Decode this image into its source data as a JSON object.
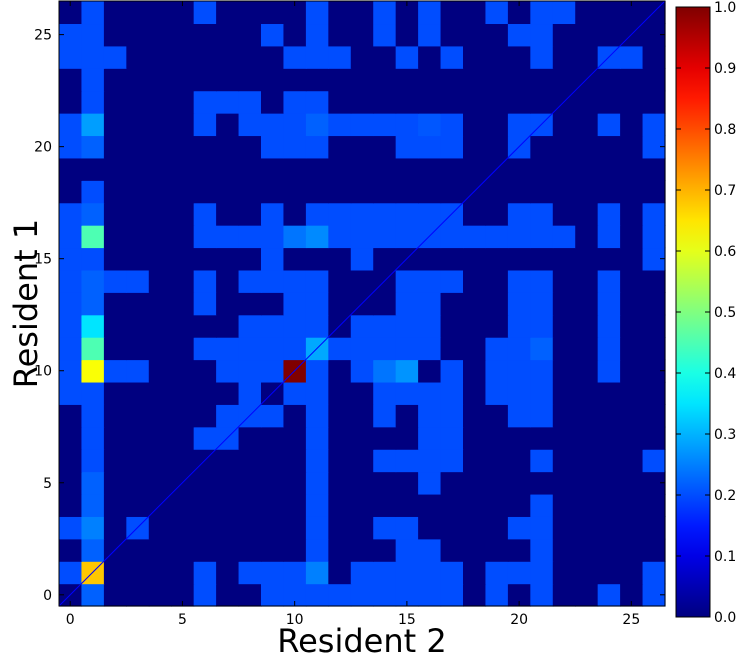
{
  "chart_data": {
    "type": "heatmap",
    "xlabel": "Resident 2",
    "ylabel": "Resident 1",
    "title": "",
    "x_range": [
      -0.5,
      26.5
    ],
    "y_range": [
      -0.5,
      26.5
    ],
    "x_ticks": [
      0,
      5,
      10,
      15,
      20,
      25
    ],
    "y_ticks": [
      0,
      5,
      10,
      15,
      20,
      25
    ],
    "colorbar": {
      "min": 0.0,
      "max": 1.0,
      "ticks": [
        "0.0",
        "0.1",
        "0.2",
        "0.3",
        "0.4",
        "0.5",
        "0.6",
        "0.7",
        "0.8",
        "0.9",
        "1.0"
      ],
      "colormap": "jet"
    },
    "diagonal_line": true,
    "matrix_note": "rows indexed by Resident 1 (y), columns by Resident 2 (x); values 0..1",
    "matrix": [
      [
        0.0,
        0.22,
        0.0,
        0.0,
        0.0,
        0.0,
        0.2,
        0.0,
        0.0,
        0.2,
        0.2,
        0.2,
        0.2,
        0.2,
        0.2,
        0.2,
        0.2,
        0.2,
        0.0,
        0.2,
        0.0,
        0.2,
        0.0,
        0.0,
        0.2,
        0.0,
        0.2
      ],
      [
        0.2,
        0.68,
        0.0,
        0.0,
        0.0,
        0.0,
        0.2,
        0.0,
        0.2,
        0.2,
        0.2,
        0.25,
        0.0,
        0.2,
        0.2,
        0.2,
        0.2,
        0.2,
        0.0,
        0.2,
        0.2,
        0.2,
        0.0,
        0.0,
        0.0,
        0.0,
        0.2
      ],
      [
        0.0,
        0.22,
        0.0,
        0.0,
        0.0,
        0.0,
        0.0,
        0.0,
        0.0,
        0.0,
        0.0,
        0.2,
        0.0,
        0.0,
        0.0,
        0.2,
        0.2,
        0.0,
        0.0,
        0.0,
        0.0,
        0.2,
        0.0,
        0.0,
        0.0,
        0.0,
        0.0
      ],
      [
        0.2,
        0.25,
        0.0,
        0.2,
        0.0,
        0.0,
        0.0,
        0.0,
        0.0,
        0.0,
        0.0,
        0.2,
        0.0,
        0.0,
        0.2,
        0.2,
        0.0,
        0.0,
        0.0,
        0.0,
        0.2,
        0.2,
        0.0,
        0.0,
        0.0,
        0.0,
        0.0
      ],
      [
        0.0,
        0.22,
        0.0,
        0.0,
        0.0,
        0.0,
        0.0,
        0.0,
        0.0,
        0.0,
        0.0,
        0.2,
        0.0,
        0.0,
        0.0,
        0.0,
        0.0,
        0.0,
        0.0,
        0.0,
        0.0,
        0.2,
        0.0,
        0.0,
        0.0,
        0.0,
        0.0
      ],
      [
        0.0,
        0.22,
        0.0,
        0.0,
        0.0,
        0.0,
        0.0,
        0.0,
        0.0,
        0.0,
        0.0,
        0.2,
        0.0,
        0.0,
        0.0,
        0.0,
        0.2,
        0.0,
        0.0,
        0.0,
        0.0,
        0.0,
        0.0,
        0.0,
        0.0,
        0.0,
        0.0
      ],
      [
        0.0,
        0.2,
        0.0,
        0.0,
        0.0,
        0.0,
        0.0,
        0.0,
        0.0,
        0.0,
        0.0,
        0.2,
        0.0,
        0.0,
        0.2,
        0.2,
        0.2,
        0.2,
        0.0,
        0.0,
        0.0,
        0.2,
        0.0,
        0.0,
        0.0,
        0.0,
        0.2
      ],
      [
        0.0,
        0.2,
        0.0,
        0.0,
        0.0,
        0.0,
        0.2,
        0.2,
        0.0,
        0.0,
        0.0,
        0.2,
        0.0,
        0.0,
        0.0,
        0.0,
        0.2,
        0.2,
        0.0,
        0.0,
        0.0,
        0.0,
        0.0,
        0.0,
        0.0,
        0.0,
        0.0
      ],
      [
        0.0,
        0.2,
        0.0,
        0.0,
        0.0,
        0.0,
        0.0,
        0.2,
        0.2,
        0.2,
        0.0,
        0.2,
        0.0,
        0.0,
        0.2,
        0.0,
        0.2,
        0.2,
        0.0,
        0.0,
        0.2,
        0.2,
        0.0,
        0.0,
        0.0,
        0.0,
        0.0
      ],
      [
        0.2,
        0.2,
        0.0,
        0.0,
        0.0,
        0.0,
        0.0,
        0.0,
        0.2,
        0.0,
        0.2,
        0.2,
        0.0,
        0.0,
        0.2,
        0.2,
        0.2,
        0.2,
        0.0,
        0.2,
        0.2,
        0.2,
        0.0,
        0.0,
        0.0,
        0.0,
        0.0
      ],
      [
        0.2,
        0.62,
        0.2,
        0.2,
        0.0,
        0.0,
        0.0,
        0.2,
        0.2,
        0.2,
        1.0,
        0.2,
        0.0,
        0.2,
        0.24,
        0.27,
        0.0,
        0.2,
        0.0,
        0.2,
        0.2,
        0.2,
        0.0,
        0.0,
        0.2,
        0.0,
        0.0
      ],
      [
        0.2,
        0.45,
        0.0,
        0.0,
        0.0,
        0.0,
        0.2,
        0.2,
        0.2,
        0.2,
        0.2,
        0.29,
        0.2,
        0.2,
        0.2,
        0.2,
        0.2,
        0.0,
        0.0,
        0.2,
        0.2,
        0.22,
        0.0,
        0.0,
        0.2,
        0.0,
        0.0
      ],
      [
        0.2,
        0.35,
        0.0,
        0.0,
        0.0,
        0.0,
        0.0,
        0.0,
        0.2,
        0.2,
        0.2,
        0.2,
        0.0,
        0.2,
        0.2,
        0.2,
        0.2,
        0.0,
        0.0,
        0.0,
        0.2,
        0.2,
        0.0,
        0.0,
        0.2,
        0.0,
        0.0
      ],
      [
        0.2,
        0.22,
        0.0,
        0.0,
        0.0,
        0.0,
        0.2,
        0.0,
        0.0,
        0.0,
        0.2,
        0.2,
        0.0,
        0.0,
        0.0,
        0.2,
        0.2,
        0.0,
        0.0,
        0.0,
        0.2,
        0.2,
        0.0,
        0.0,
        0.2,
        0.0,
        0.0
      ],
      [
        0.2,
        0.22,
        0.2,
        0.2,
        0.0,
        0.0,
        0.2,
        0.0,
        0.2,
        0.2,
        0.2,
        0.2,
        0.0,
        0.0,
        0.0,
        0.2,
        0.2,
        0.2,
        0.0,
        0.0,
        0.2,
        0.2,
        0.0,
        0.0,
        0.2,
        0.0,
        0.0
      ],
      [
        0.2,
        0.2,
        0.0,
        0.0,
        0.0,
        0.0,
        0.0,
        0.0,
        0.0,
        0.2,
        0.0,
        0.0,
        0.0,
        0.2,
        0.0,
        0.0,
        0.0,
        0.0,
        0.0,
        0.0,
        0.0,
        0.0,
        0.0,
        0.0,
        0.0,
        0.0,
        0.2
      ],
      [
        0.2,
        0.45,
        0.0,
        0.0,
        0.0,
        0.0,
        0.2,
        0.2,
        0.2,
        0.2,
        0.24,
        0.26,
        0.2,
        0.2,
        0.2,
        0.2,
        0.2,
        0.2,
        0.2,
        0.2,
        0.2,
        0.2,
        0.2,
        0.0,
        0.2,
        0.0,
        0.2
      ],
      [
        0.2,
        0.22,
        0.0,
        0.0,
        0.0,
        0.0,
        0.2,
        0.0,
        0.0,
        0.2,
        0.0,
        0.2,
        0.2,
        0.2,
        0.2,
        0.2,
        0.2,
        0.2,
        0.0,
        0.0,
        0.2,
        0.2,
        0.0,
        0.0,
        0.2,
        0.0,
        0.2
      ],
      [
        0.0,
        0.2,
        0.0,
        0.0,
        0.0,
        0.0,
        0.0,
        0.0,
        0.0,
        0.0,
        0.0,
        0.0,
        0.0,
        0.0,
        0.0,
        0.0,
        0.0,
        0.0,
        0.0,
        0.0,
        0.0,
        0.0,
        0.0,
        0.0,
        0.0,
        0.0,
        0.0
      ],
      [
        0.0,
        0.0,
        0.0,
        0.0,
        0.0,
        0.0,
        0.0,
        0.0,
        0.0,
        0.0,
        0.0,
        0.0,
        0.0,
        0.0,
        0.0,
        0.0,
        0.0,
        0.0,
        0.0,
        0.0,
        0.0,
        0.0,
        0.0,
        0.0,
        0.0,
        0.0,
        0.0
      ],
      [
        0.2,
        0.22,
        0.0,
        0.0,
        0.0,
        0.0,
        0.0,
        0.0,
        0.0,
        0.2,
        0.2,
        0.2,
        0.0,
        0.0,
        0.0,
        0.2,
        0.2,
        0.2,
        0.0,
        0.0,
        0.2,
        0.0,
        0.0,
        0.0,
        0.0,
        0.0,
        0.2
      ],
      [
        0.2,
        0.28,
        0.0,
        0.0,
        0.0,
        0.0,
        0.2,
        0.0,
        0.2,
        0.2,
        0.2,
        0.22,
        0.2,
        0.2,
        0.2,
        0.2,
        0.21,
        0.2,
        0.0,
        0.0,
        0.2,
        0.2,
        0.0,
        0.0,
        0.2,
        0.0,
        0.2
      ],
      [
        0.0,
        0.2,
        0.0,
        0.0,
        0.0,
        0.0,
        0.2,
        0.2,
        0.2,
        0.0,
        0.2,
        0.2,
        0.0,
        0.0,
        0.0,
        0.0,
        0.0,
        0.0,
        0.0,
        0.0,
        0.0,
        0.0,
        0.0,
        0.0,
        0.0,
        0.0,
        0.0
      ],
      [
        0.0,
        0.2,
        0.0,
        0.0,
        0.0,
        0.0,
        0.0,
        0.0,
        0.0,
        0.0,
        0.0,
        0.0,
        0.0,
        0.0,
        0.0,
        0.0,
        0.0,
        0.0,
        0.0,
        0.0,
        0.0,
        0.0,
        0.0,
        0.0,
        0.0,
        0.0,
        0.0
      ],
      [
        0.2,
        0.2,
        0.2,
        0.0,
        0.0,
        0.0,
        0.0,
        0.0,
        0.0,
        0.0,
        0.2,
        0.2,
        0.2,
        0.0,
        0.0,
        0.2,
        0.0,
        0.2,
        0.0,
        0.0,
        0.0,
        0.2,
        0.0,
        0.0,
        0.2,
        0.2,
        0.0
      ],
      [
        0.2,
        0.2,
        0.0,
        0.0,
        0.0,
        0.0,
        0.0,
        0.0,
        0.0,
        0.2,
        0.0,
        0.2,
        0.0,
        0.0,
        0.2,
        0.0,
        0.2,
        0.0,
        0.0,
        0.0,
        0.2,
        0.2,
        0.0,
        0.0,
        0.0,
        0.0,
        0.0
      ],
      [
        0.0,
        0.2,
        0.0,
        0.0,
        0.0,
        0.0,
        0.2,
        0.0,
        0.0,
        0.0,
        0.0,
        0.2,
        0.0,
        0.0,
        0.2,
        0.0,
        0.2,
        0.0,
        0.0,
        0.2,
        0.0,
        0.2,
        0.2,
        0.0,
        0.0,
        0.0,
        0.0
      ]
    ]
  }
}
